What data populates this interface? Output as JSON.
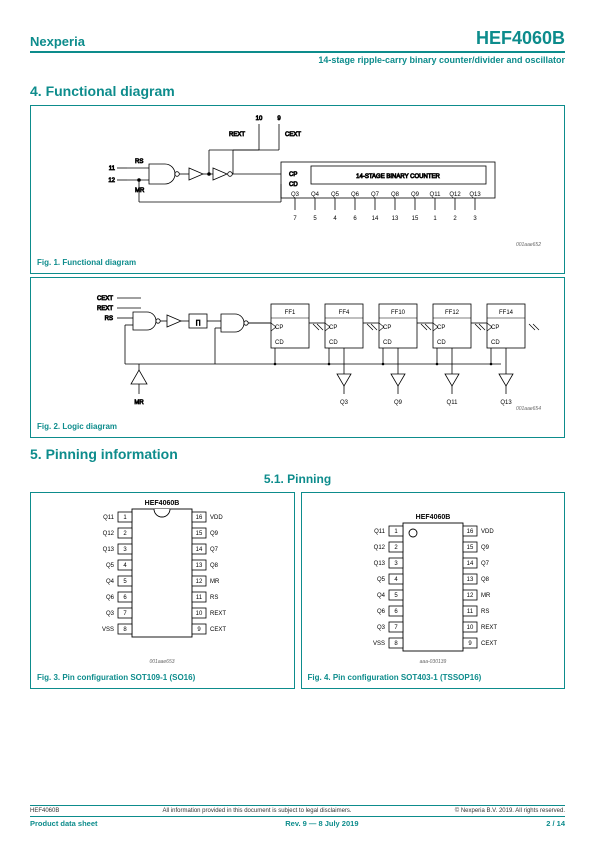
{
  "header": {
    "brand": "Nexperia",
    "part": "HEF4060B",
    "subtitle": "14-stage ripple-carry binary counter/divider and oscillator"
  },
  "sections": {
    "s4": "4.  Functional diagram",
    "s5": "5.  Pinning information",
    "s51": "5.1.  Pinning"
  },
  "fig1": {
    "caption": "Fig. 1.    Functional diagram",
    "ref": "001aae652",
    "inputs": {
      "rs_pin": "11",
      "rs": "RS",
      "mr_pin": "12",
      "mr": "MR"
    },
    "top": {
      "rext_pin": "10",
      "rext": "REXT",
      "cext_pin": "9",
      "cext": "CEXT"
    },
    "block": "14-STAGE BINARY COUNTER",
    "block_in": {
      "cp": "CP",
      "cd": "CD"
    },
    "outs": [
      "Q3",
      "Q4",
      "Q5",
      "Q6",
      "Q7",
      "Q8",
      "Q9",
      "Q11",
      "Q12",
      "Q13"
    ],
    "out_pins": [
      "7",
      "5",
      "4",
      "6",
      "14",
      "13",
      "15",
      "1",
      "2",
      "3"
    ]
  },
  "fig2": {
    "caption": "Fig. 2.    Logic diagram",
    "ref": "001aae654",
    "sig": {
      "cext": "CEXT",
      "rext": "REXT",
      "rs": "RS",
      "mr": "MR"
    },
    "ff": [
      "FF1",
      "FF4",
      "FF10",
      "FF12",
      "FF14"
    ],
    "cp": "CP",
    "cd": "CD",
    "outs": [
      "Q3",
      "Q9",
      "Q11",
      "Q13"
    ]
  },
  "fig3": {
    "caption": "Fig. 3.    Pin configuration SOT109-1 (SO16)",
    "ref": "001aae653",
    "title": "HEF4060B",
    "left": [
      [
        "Q11",
        "1"
      ],
      [
        "Q12",
        "2"
      ],
      [
        "Q13",
        "3"
      ],
      [
        "Q5",
        "4"
      ],
      [
        "Q4",
        "5"
      ],
      [
        "Q6",
        "6"
      ],
      [
        "Q3",
        "7"
      ],
      [
        "VSS",
        "8"
      ]
    ],
    "right": [
      [
        "16",
        "VDD"
      ],
      [
        "15",
        "Q9"
      ],
      [
        "14",
        "Q7"
      ],
      [
        "13",
        "Q8"
      ],
      [
        "12",
        "MR"
      ],
      [
        "11",
        "RS"
      ],
      [
        "10",
        "REXT"
      ],
      [
        "9",
        "CEXT"
      ]
    ]
  },
  "fig4": {
    "caption": "Fig. 4.    Pin configuration SOT403-1 (TSSOP16)",
    "ref": "aaa-030139",
    "title": "HEF4060B",
    "left": [
      [
        "Q11",
        "1"
      ],
      [
        "Q12",
        "2"
      ],
      [
        "Q13",
        "3"
      ],
      [
        "Q5",
        "4"
      ],
      [
        "Q4",
        "5"
      ],
      [
        "Q6",
        "6"
      ],
      [
        "Q3",
        "7"
      ],
      [
        "VSS",
        "8"
      ]
    ],
    "right": [
      [
        "16",
        "VDD"
      ],
      [
        "15",
        "Q9"
      ],
      [
        "14",
        "Q7"
      ],
      [
        "13",
        "Q8"
      ],
      [
        "12",
        "MR"
      ],
      [
        "11",
        "RS"
      ],
      [
        "10",
        "REXT"
      ],
      [
        "9",
        "CEXT"
      ]
    ]
  },
  "footer": {
    "tl": "HEF4060B",
    "tc": "All information provided in this document is subject to legal disclaimers.",
    "tr": "© Nexperia B.V. 2019. All rights reserved.",
    "bl": "Product data sheet",
    "bc": "Rev. 9 — 8 July 2019",
    "br": "2 / 14"
  },
  "style": {
    "accent": "#0d8c8c",
    "stroke": "#000000",
    "fill": "#ffffff"
  }
}
